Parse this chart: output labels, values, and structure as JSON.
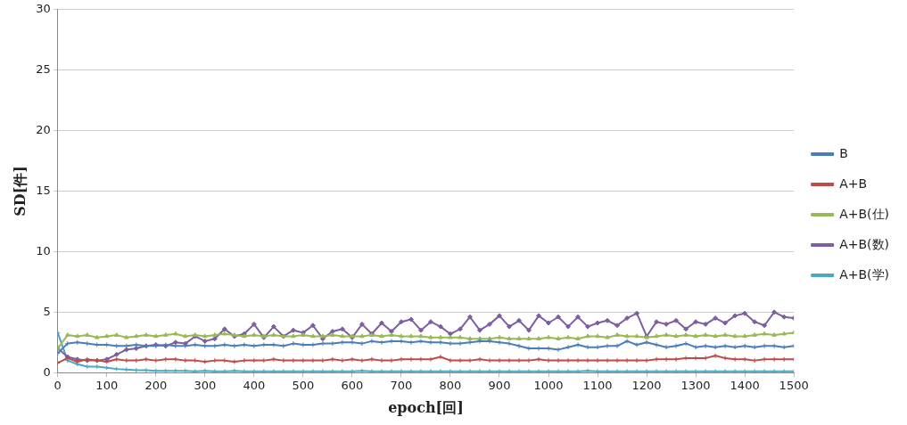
{
  "chart_data": {
    "type": "line",
    "xlabel": "epoch[回]",
    "ylabel": "SD[件]",
    "x": [
      0,
      20,
      40,
      60,
      80,
      100,
      120,
      140,
      160,
      180,
      200,
      220,
      240,
      260,
      280,
      300,
      320,
      340,
      360,
      380,
      400,
      420,
      440,
      460,
      480,
      500,
      520,
      540,
      560,
      580,
      600,
      620,
      640,
      660,
      680,
      700,
      720,
      740,
      760,
      780,
      800,
      820,
      840,
      860,
      880,
      900,
      920,
      940,
      960,
      980,
      1000,
      1020,
      1040,
      1060,
      1080,
      1100,
      1120,
      1140,
      1160,
      1180,
      1200,
      1220,
      1240,
      1260,
      1280,
      1300,
      1320,
      1340,
      1360,
      1380,
      1400,
      1420,
      1440,
      1460,
      1480,
      1500
    ],
    "xlim": [
      0,
      1500
    ],
    "xticks": [
      0,
      100,
      200,
      300,
      400,
      500,
      600,
      700,
      800,
      900,
      1000,
      1100,
      1200,
      1300,
      1400,
      1500
    ],
    "ylim": [
      0,
      30
    ],
    "yticks": [
      0,
      5,
      10,
      15,
      20,
      25,
      30
    ],
    "grid": "y",
    "legend": "right",
    "line_style": "solid",
    "series": [
      {
        "name": "B",
        "color": "#4a7ebb",
        "marker": "cross",
        "values": [
          1.6,
          2.4,
          2.5,
          2.4,
          2.3,
          2.3,
          2.2,
          2.2,
          2.3,
          2.2,
          2.2,
          2.3,
          2.2,
          2.2,
          2.3,
          2.2,
          2.2,
          2.3,
          2.2,
          2.3,
          2.2,
          2.3,
          2.3,
          2.2,
          2.4,
          2.3,
          2.3,
          2.4,
          2.4,
          2.5,
          2.5,
          2.4,
          2.6,
          2.5,
          2.6,
          2.6,
          2.5,
          2.6,
          2.5,
          2.5,
          2.4,
          2.4,
          2.5,
          2.6,
          2.6,
          2.5,
          2.4,
          2.2,
          2.0,
          2.0,
          2.0,
          1.9,
          2.1,
          2.3,
          2.1,
          2.1,
          2.2,
          2.2,
          2.6,
          2.3,
          2.5,
          2.3,
          2.1,
          2.2,
          2.4,
          2.1,
          2.2,
          2.1,
          2.2,
          2.1,
          2.2,
          2.1,
          2.2,
          2.2,
          2.1,
          2.2
        ]
      },
      {
        "name": "A+B",
        "color": "#be4b48",
        "marker": "cross",
        "values": [
          0.8,
          1.2,
          0.9,
          1.1,
          1.0,
          0.9,
          1.1,
          1.0,
          1.0,
          1.1,
          1.0,
          1.1,
          1.1,
          1.0,
          1.0,
          0.9,
          1.0,
          1.0,
          0.9,
          1.0,
          1.0,
          1.0,
          1.1,
          1.0,
          1.0,
          1.0,
          1.0,
          1.0,
          1.1,
          1.0,
          1.1,
          1.0,
          1.1,
          1.0,
          1.0,
          1.1,
          1.1,
          1.1,
          1.1,
          1.3,
          1.0,
          1.0,
          1.0,
          1.1,
          1.0,
          1.0,
          1.0,
          1.0,
          1.0,
          1.1,
          1.0,
          1.0,
          1.0,
          1.0,
          1.0,
          1.0,
          1.0,
          1.0,
          1.0,
          1.0,
          1.0,
          1.1,
          1.1,
          1.1,
          1.2,
          1.2,
          1.2,
          1.4,
          1.2,
          1.1,
          1.1,
          1.0,
          1.1,
          1.1,
          1.1,
          1.1
        ]
      },
      {
        "name": "A+B(仕)",
        "color": "#98b954",
        "marker": "triangle",
        "values": [
          2.0,
          3.1,
          3.0,
          3.1,
          2.9,
          3.0,
          3.1,
          2.9,
          3.0,
          3.1,
          3.0,
          3.1,
          3.2,
          3.0,
          3.1,
          3.0,
          3.1,
          3.2,
          3.1,
          3.0,
          3.1,
          3.0,
          3.1,
          3.0,
          3.0,
          3.1,
          3.0,
          3.0,
          3.1,
          3.0,
          3.0,
          3.0,
          3.1,
          3.0,
          3.1,
          3.0,
          3.0,
          3.0,
          2.9,
          2.9,
          2.9,
          2.9,
          2.8,
          2.8,
          2.8,
          2.9,
          2.8,
          2.8,
          2.8,
          2.8,
          2.9,
          2.8,
          2.9,
          2.8,
          3.0,
          3.0,
          2.9,
          3.1,
          3.0,
          3.0,
          2.9,
          3.0,
          3.1,
          3.0,
          3.1,
          3.0,
          3.1,
          3.0,
          3.1,
          3.0,
          3.0,
          3.1,
          3.2,
          3.1,
          3.2,
          3.3
        ]
      },
      {
        "name": "A+B(数)",
        "color": "#7d5fa0",
        "marker": "diamond",
        "values": [
          2.0,
          1.3,
          1.1,
          1.0,
          1.0,
          1.1,
          1.5,
          1.9,
          2.0,
          2.2,
          2.3,
          2.2,
          2.5,
          2.4,
          3.0,
          2.6,
          2.8,
          3.6,
          3.0,
          3.2,
          4.0,
          2.9,
          3.8,
          3.0,
          3.5,
          3.3,
          3.9,
          2.8,
          3.4,
          3.6,
          2.9,
          4.0,
          3.2,
          4.1,
          3.4,
          4.2,
          4.4,
          3.5,
          4.2,
          3.8,
          3.2,
          3.6,
          4.6,
          3.5,
          4.0,
          4.7,
          3.8,
          4.3,
          3.5,
          4.7,
          4.1,
          4.6,
          3.8,
          4.6,
          3.8,
          4.1,
          4.3,
          3.9,
          4.5,
          4.9,
          3.0,
          4.2,
          4.0,
          4.3,
          3.6,
          4.2,
          4.0,
          4.5,
          4.1,
          4.7,
          4.9,
          4.2,
          3.9,
          5.0,
          4.6,
          4.5
        ]
      },
      {
        "name": "A+B(学)",
        "color": "#46aac5",
        "marker": "cross",
        "values": [
          3.3,
          1.0,
          0.7,
          0.5,
          0.5,
          0.4,
          0.3,
          0.25,
          0.2,
          0.2,
          0.15,
          0.15,
          0.15,
          0.15,
          0.1,
          0.15,
          0.1,
          0.1,
          0.15,
          0.1,
          0.1,
          0.1,
          0.1,
          0.1,
          0.1,
          0.1,
          0.1,
          0.1,
          0.1,
          0.1,
          0.1,
          0.15,
          0.1,
          0.1,
          0.1,
          0.1,
          0.1,
          0.1,
          0.1,
          0.1,
          0.1,
          0.1,
          0.1,
          0.1,
          0.1,
          0.1,
          0.1,
          0.1,
          0.1,
          0.1,
          0.1,
          0.1,
          0.1,
          0.1,
          0.15,
          0.1,
          0.1,
          0.1,
          0.1,
          0.1,
          0.1,
          0.1,
          0.1,
          0.1,
          0.1,
          0.1,
          0.1,
          0.1,
          0.1,
          0.1,
          0.1,
          0.1,
          0.1,
          0.1,
          0.1,
          0.1
        ]
      }
    ]
  }
}
